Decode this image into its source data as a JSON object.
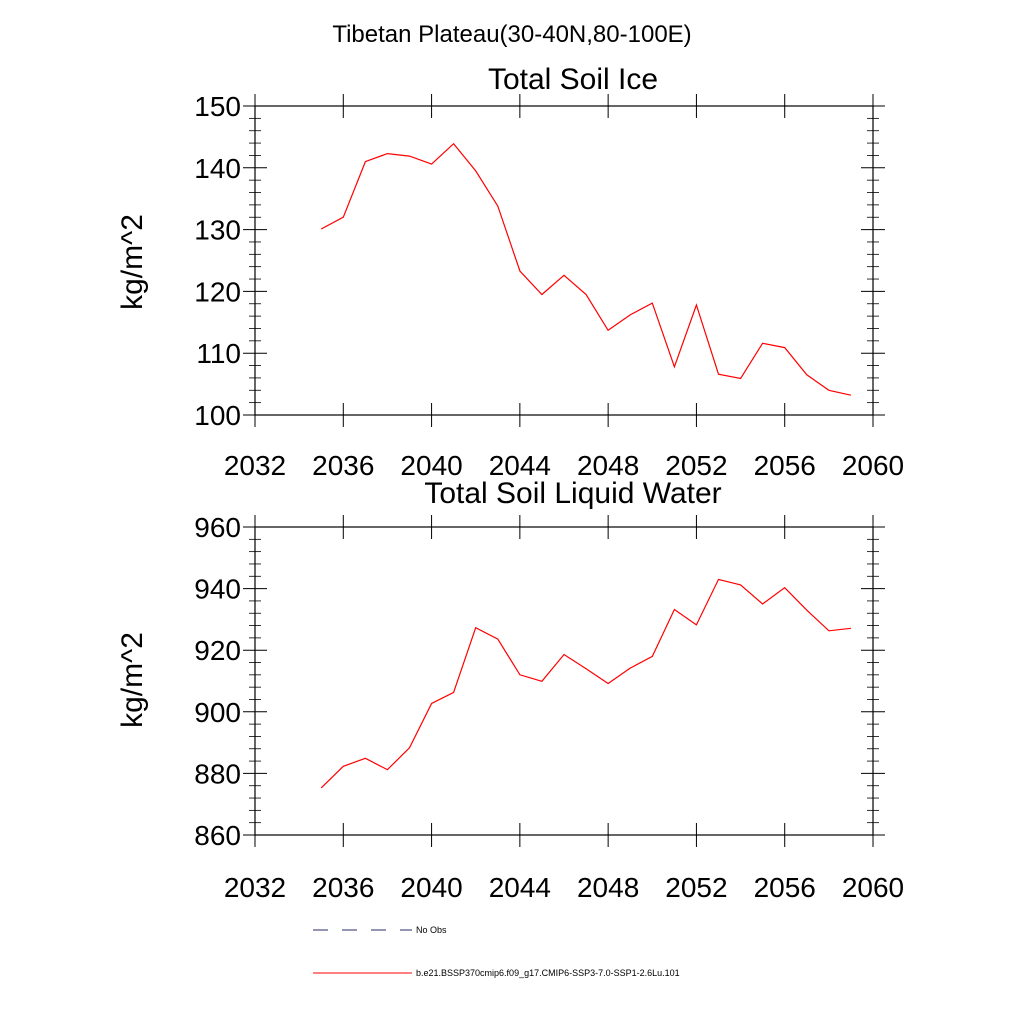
{
  "figure": {
    "suptitle": "Tibetan Plateau(30-40N,80-100E)"
  },
  "chart_data": [
    {
      "type": "line",
      "title": "Total Soil Ice",
      "xlabel": "",
      "ylabel": "kg/m^2",
      "xlim": [
        2032,
        2060
      ],
      "ylim": [
        100,
        150
      ],
      "x_ticks": [
        2032,
        2036,
        2040,
        2044,
        2048,
        2052,
        2056,
        2060
      ],
      "y_ticks": [
        100,
        110,
        120,
        130,
        140,
        150
      ],
      "grid": false,
      "series": [
        {
          "name": "b.e21.BSSP370cmip6.f09_g17.CMIP6-SSP3-7.0-SSP1-2.6Lu.101",
          "color": "#ff0000",
          "x": [
            2035,
            2036,
            2037,
            2038,
            2039,
            2040,
            2041,
            2042,
            2043,
            2044,
            2045,
            2046,
            2047,
            2048,
            2049,
            2050,
            2051,
            2052,
            2053,
            2054,
            2055,
            2056,
            2057,
            2058,
            2059
          ],
          "values": [
            130.1,
            132.0,
            141.0,
            142.3,
            141.9,
            140.6,
            143.9,
            139.5,
            133.8,
            123.3,
            119.5,
            122.6,
            119.5,
            113.7,
            116.2,
            118.1,
            107.8,
            117.8,
            106.6,
            105.9,
            111.6,
            110.9,
            106.5,
            104.0,
            103.2
          ]
        }
      ]
    },
    {
      "type": "line",
      "title": "Total Soil Liquid Water",
      "xlabel": "",
      "ylabel": "kg/m^2",
      "xlim": [
        2032,
        2060
      ],
      "ylim": [
        860,
        960
      ],
      "x_ticks": [
        2032,
        2036,
        2040,
        2044,
        2048,
        2052,
        2056,
        2060
      ],
      "y_ticks": [
        860,
        880,
        900,
        920,
        940,
        960
      ],
      "grid": false,
      "series": [
        {
          "name": "b.e21.BSSP370cmip6.f09_g17.CMIP6-SSP3-7.0-SSP1-2.6Lu.101",
          "color": "#ff0000",
          "x": [
            2035,
            2036,
            2037,
            2038,
            2039,
            2040,
            2041,
            2042,
            2043,
            2044,
            2045,
            2046,
            2047,
            2048,
            2049,
            2050,
            2051,
            2052,
            2053,
            2054,
            2055,
            2056,
            2057,
            2058,
            2059
          ],
          "values": [
            875.3,
            882.3,
            884.9,
            881.2,
            888.3,
            902.7,
            906.3,
            927.3,
            923.6,
            912.0,
            909.9,
            918.6,
            914.0,
            909.2,
            914.2,
            918.0,
            933.2,
            928.2,
            943.0,
            941.2,
            935.0,
            940.3,
            933.0,
            926.3,
            927.1
          ]
        }
      ]
    }
  ],
  "legend": {
    "placement": "bottom",
    "entries": [
      {
        "label": "No Obs",
        "color": "#2a2a6a",
        "style": "dashed"
      },
      {
        "label": "b.e21.BSSP370cmip6.f09_g17.CMIP6-SSP3-7.0-SSP1-2.6Lu.101",
        "color": "#ff0000",
        "style": "solid"
      }
    ]
  }
}
